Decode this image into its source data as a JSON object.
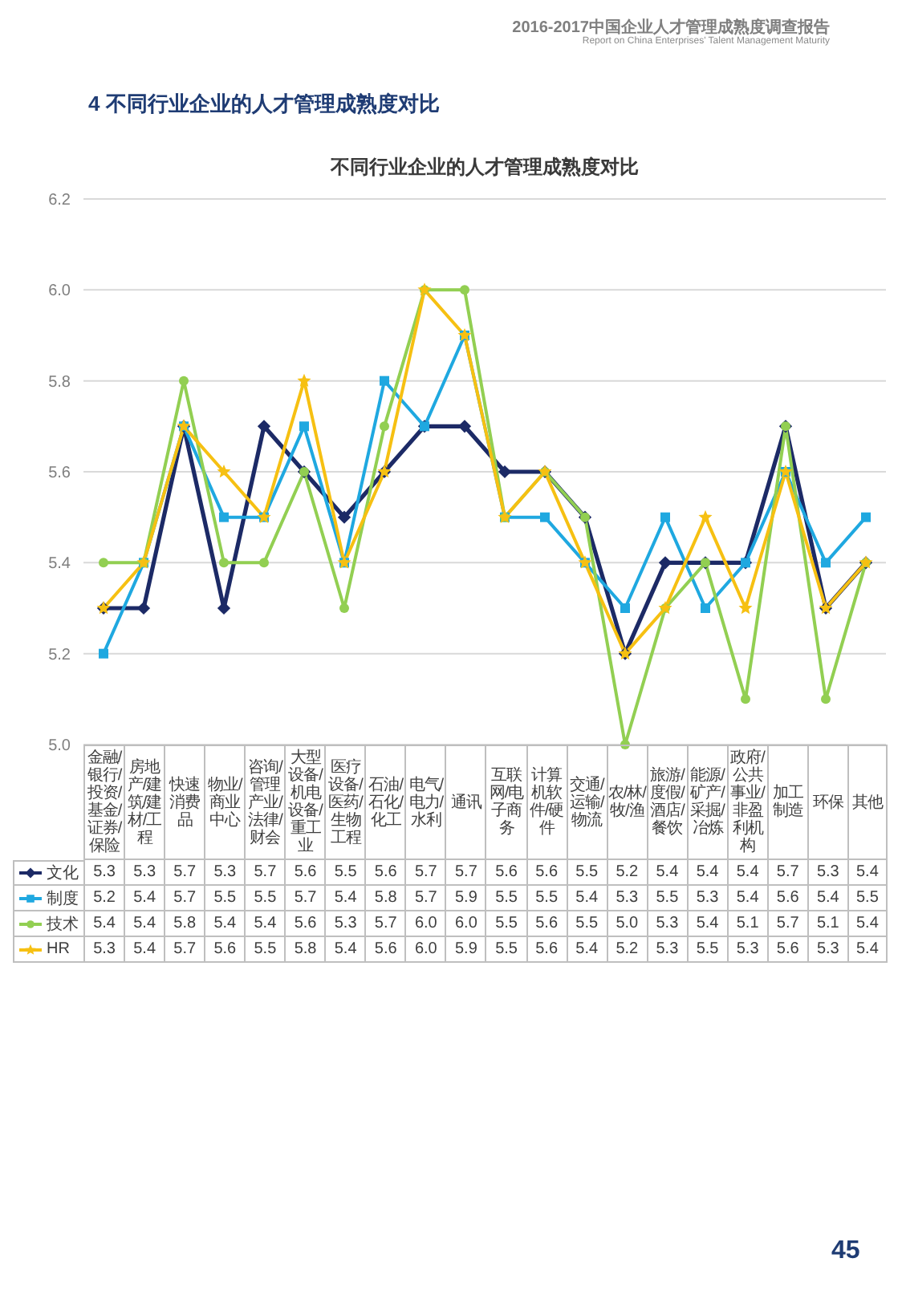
{
  "chart_data": {
    "type": "line",
    "title": "不同行业企业的人才管理成熟度对比",
    "annotations": [
      "2016-2017中国企业人才管理成熟度调查报告",
      "Report on China Enterprises' Talent Management Maturity",
      "4 不同行业企业的人才管理成熟度对比",
      "45"
    ],
    "categories": [
      "金融/银行/投资/基金/证券/保险",
      "房地产/建筑/建材/工程",
      "快速消费品",
      "物业/商业中心",
      "咨询/管理产业/法律/财会",
      "大型设备/机电设备/重工业",
      "医疗设备/医药/生物工程",
      "石油/石化/化工",
      "电气/电力/水利",
      "通讯",
      "互联网/电子商务",
      "计算机软件/硬件",
      "交通/运输/物流",
      "农/林/牧/渔",
      "旅游/度假/酒店/餐饮",
      "能源/矿产/采掘/冶炼",
      "政府/公共事业/非盈利机构",
      "加工制造",
      "环保",
      "其他"
    ],
    "series": [
      {
        "name": "文化",
        "color": "#1c2a66",
        "marker": "diamond",
        "values": [
          5.3,
          5.3,
          5.7,
          5.3,
          5.7,
          5.6,
          5.5,
          5.6,
          5.7,
          5.7,
          5.6,
          5.6,
          5.5,
          5.2,
          5.4,
          5.4,
          5.4,
          5.7,
          5.3,
          5.4
        ],
        "value_labels": [
          "5.3",
          "5.3",
          "5.7",
          "5.3",
          "5.7",
          "5.6",
          "5.5",
          "5.6",
          "5.7",
          "5.7",
          "5.6",
          "5.6",
          "5.5",
          "5.2",
          "5.4",
          "5.4",
          "5.4",
          "5.7",
          "5.3",
          "5.4"
        ]
      },
      {
        "name": "制度",
        "color": "#1fa8e0",
        "marker": "square",
        "values": [
          5.2,
          5.4,
          5.7,
          5.5,
          5.5,
          5.7,
          5.4,
          5.8,
          5.7,
          5.9,
          5.5,
          5.5,
          5.4,
          5.3,
          5.5,
          5.3,
          5.4,
          5.6,
          5.4,
          5.5
        ],
        "value_labels": [
          "5.2",
          "5.4",
          "5.7",
          "5.5",
          "5.5",
          "5.7",
          "5.4",
          "5.8",
          "5.7",
          "5.9",
          "5.5",
          "5.5",
          "5.4",
          "5.3",
          "5.5",
          "5.3",
          "5.4",
          "5.6",
          "5.4",
          "5.5"
        ]
      },
      {
        "name": "技术",
        "color": "#92cf52",
        "marker": "circle",
        "values": [
          5.4,
          5.4,
          5.8,
          5.4,
          5.4,
          5.6,
          5.3,
          5.7,
          6.0,
          6.0,
          5.5,
          5.6,
          5.5,
          5.0,
          5.3,
          5.4,
          5.1,
          5.7,
          5.1,
          5.4
        ],
        "value_labels": [
          "5.4",
          "5.4",
          "5.8",
          "5.4",
          "5.4",
          "5.6",
          "5.3",
          "5.7",
          "6.0",
          "6.0",
          "5.5",
          "5.6",
          "5.5",
          "5.0",
          "5.3",
          "5.4",
          "5.1",
          "5.7",
          "5.1",
          "5.4"
        ]
      },
      {
        "name": "HR",
        "color": "#f6c012",
        "marker": "star",
        "values": [
          5.3,
          5.4,
          5.7,
          5.6,
          5.5,
          5.8,
          5.4,
          5.6,
          6.0,
          5.9,
          5.5,
          5.6,
          5.4,
          5.2,
          5.3,
          5.5,
          5.3,
          5.6,
          5.3,
          5.4
        ],
        "value_labels": [
          "5.3",
          "5.4",
          "5.7",
          "5.6",
          "5.5",
          "5.8",
          "5.4",
          "5.6",
          "6.0",
          "5.9",
          "5.5",
          "5.6",
          "5.4",
          "5.2",
          "5.3",
          "5.5",
          "5.3",
          "5.6",
          "5.3",
          "5.4"
        ]
      }
    ],
    "ylim": [
      5.0,
      6.2
    ],
    "yticks": [
      {
        "value": 5.0,
        "label": "5.0"
      },
      5.2,
      5.4,
      5.6,
      5.8,
      {
        "value": 6.0,
        "label": "6.0"
      },
      6.2
    ],
    "grid": "y",
    "legend": "bottom"
  }
}
